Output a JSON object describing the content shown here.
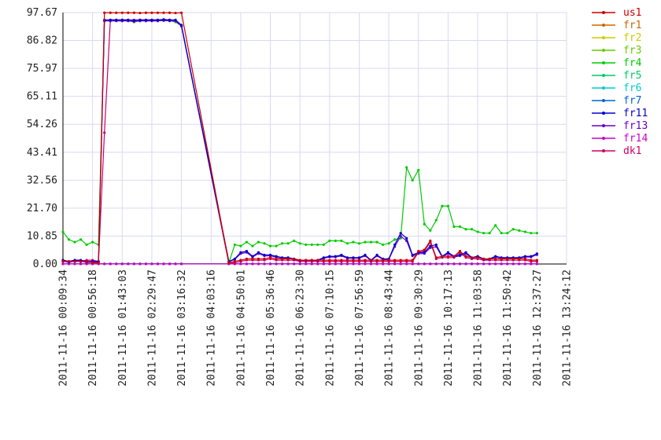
{
  "chart_data": {
    "type": "line",
    "title": "",
    "xlabel": "",
    "ylabel": "",
    "ylim": [
      0,
      97.67
    ],
    "yticks": [
      "0.00",
      "10.85",
      "21.70",
      "32.56",
      "43.41",
      "54.26",
      "65.11",
      "75.97",
      "86.82",
      "97.67"
    ],
    "xticks": [
      "2011-11-16 00:09:34",
      "2011-11-16 00:56:18",
      "2011-11-16 01:43:03",
      "2011-11-16 02:29:47",
      "2011-11-16 03:16:32",
      "2011-11-16 04:03:16",
      "2011-11-16 04:50:01",
      "2011-11-16 05:36:46",
      "2011-11-16 06:23:30",
      "2011-11-16 07:10:15",
      "2011-11-16 07:56:59",
      "2011-11-16 08:43:44",
      "2011-11-16 09:30:29",
      "2011-11-16 10:17:13",
      "2011-11-16 11:03:58",
      "2011-11-16 11:50:42",
      "2011-11-16 12:37:27",
      "2011-11-16 13:24:12"
    ],
    "grid": true,
    "legend_position": "right",
    "series": [
      {
        "name": "us1",
        "color": "#cc0000"
      },
      {
        "name": "fr1",
        "color": "#cc6600"
      },
      {
        "name": "fr2",
        "color": "#cccc00"
      },
      {
        "name": "fr3",
        "color": "#66cc00"
      },
      {
        "name": "fr4",
        "color": "#00cc00"
      },
      {
        "name": "fr5",
        "color": "#00cc66"
      },
      {
        "name": "fr6",
        "color": "#00cccc"
      },
      {
        "name": "fr7",
        "color": "#0066cc"
      },
      {
        "name": "fr11",
        "color": "#0000cc"
      },
      {
        "name": "fr13",
        "color": "#6600cc"
      },
      {
        "name": "fr14",
        "color": "#cc00cc"
      },
      {
        "name": "dk1",
        "color": "#cc0066"
      }
    ],
    "lines": {
      "x_first": [
        0,
        1,
        2,
        3,
        4,
        5,
        6,
        7,
        8,
        9,
        10,
        11,
        12,
        13,
        14,
        15,
        16,
        17,
        18,
        19,
        20
      ],
      "x_second": [
        28,
        29,
        30,
        31,
        32,
        33,
        34,
        35,
        36,
        37,
        38,
        39,
        40,
        41,
        42,
        43,
        44,
        45,
        46,
        47,
        48,
        49,
        50,
        51,
        52,
        53,
        54,
        55,
        56,
        57,
        58,
        59,
        60,
        61,
        62,
        63,
        64,
        65,
        66,
        67,
        68,
        69,
        70,
        71,
        72,
        73,
        74,
        75,
        76,
        77,
        78,
        79,
        80
      ],
      "us1_a": [
        1.0,
        1.0,
        1.0,
        1.0,
        1.0,
        0.5,
        0.5,
        97.6,
        97.6,
        97.6,
        97.6,
        97.6,
        97.6,
        97.5,
        97.6,
        97.6,
        97.6,
        97.6,
        97.6,
        97.5,
        97.6
      ],
      "us1_b": [
        0.5,
        1.0,
        1.5,
        2.0,
        2.0,
        2.0,
        2.0,
        2.5,
        2.0,
        2.0,
        2.0,
        2.0,
        1.5,
        1.5,
        1.5,
        1.5,
        1.5,
        1.5,
        1.5,
        1.5,
        1.5,
        1.5,
        1.5,
        1.5,
        1.5,
        1.5,
        1.5,
        1.5,
        1.5,
        1.5,
        1.5,
        1.5,
        5.0,
        5.5,
        9.0,
        2.5,
        3.0,
        3.0,
        3.0,
        5.0,
        3.0,
        2.5,
        2.5,
        2.0,
        2.0,
        2.0,
        2.0,
        2.0,
        2.0,
        2.0,
        2.0,
        1.5,
        1.5
      ],
      "fr4_a": [
        12.5,
        9.5,
        8.5,
        9.5,
        7.5,
        8.5,
        7.5,
        94.5,
        94.5,
        94.5,
        94.5,
        94.5,
        94.0,
        94.5,
        94.5,
        94.5,
        94.5,
        94.5,
        94.5,
        94.0,
        92.5
      ],
      "fr4_b": [
        0.5,
        7.5,
        7.0,
        8.5,
        7.0,
        8.5,
        8.0,
        7.0,
        7.0,
        8.0,
        8.0,
        9.0,
        8.0,
        7.5,
        7.5,
        7.5,
        7.5,
        9.0,
        9.0,
        9.0,
        8.0,
        8.5,
        8.0,
        8.5,
        8.5,
        8.5,
        7.5,
        8.0,
        9.5,
        10.0,
        37.5,
        32.5,
        36.5,
        15.5,
        13.0,
        17.0,
        22.5,
        22.5,
        14.5,
        14.5,
        13.5,
        13.5,
        12.5,
        12.0,
        12.0,
        15.0,
        12.0,
        12.0,
        13.5,
        13.0,
        12.5,
        12.0,
        12.0
      ],
      "fr11_a": [
        1.5,
        1.0,
        1.5,
        1.5,
        1.0,
        1.0,
        1.0,
        94.8,
        94.8,
        94.8,
        94.8,
        94.8,
        94.6,
        94.8,
        94.8,
        94.8,
        94.8,
        95.0,
        94.8,
        94.8,
        92.8
      ],
      "fr11_b": [
        1.0,
        2.0,
        4.5,
        5.0,
        3.0,
        4.5,
        3.5,
        3.5,
        3.0,
        2.5,
        2.5,
        2.0,
        1.5,
        1.5,
        1.5,
        1.5,
        2.5,
        3.0,
        3.0,
        3.5,
        2.5,
        2.5,
        2.5,
        3.5,
        1.5,
        3.5,
        2.0,
        2.0,
        7.5,
        12.0,
        10.0,
        3.5,
        4.5,
        4.5,
        7.0,
        7.5,
        3.0,
        4.5,
        3.0,
        3.5,
        4.5,
        2.5,
        3.0,
        2.0,
        2.0,
        3.0,
        2.5,
        2.5,
        2.5,
        2.5,
        3.0,
        3.0,
        4.0
      ],
      "dk1_a": [
        1.0,
        1.0,
        1.5,
        1.0,
        1.5,
        1.5,
        1.0,
        51.0,
        94.8,
        94.8,
        94.8,
        94.8,
        94.8,
        94.8,
        94.8,
        94.8,
        94.8,
        94.8,
        94.8,
        94.5,
        92.5
      ]
    }
  }
}
